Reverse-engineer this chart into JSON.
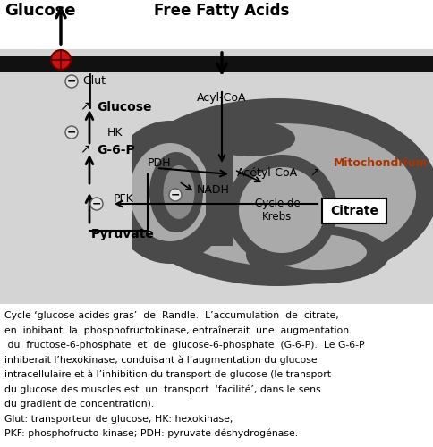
{
  "bg_diagram": "#d4d4d4",
  "bg_white": "#ffffff",
  "mito_dark": "#4a4a4a",
  "mito_mid": "#888888",
  "mito_light": "#b8b8b8",
  "membrane_color": "#111111",
  "caption_lines": [
    "Cycle ‘glucose-acides gras’  de  Randle.  L’accumulation  de  citrate,",
    "en  inhibant  la  phosphofructokinase, entraînerait  une  augmentation",
    " du  fructose-6-phosphate  et  de  glucose-6-phosphate  (G-6-P).  Le G-6-P",
    "inhiberait l’hexokinase, conduisant à l’augmentation du glucose",
    "intracellulaire et à l’inhibition du transport de glucose (le transport",
    "du glucose des muscles est  un  transport  ‘facilité’, dans le sens",
    "du gradient de concentration).",
    "Glut: transporteur de glucose; HK: hexokinase;",
    "PKF: phosphofructo-kinase; PDH: pyruvate déshydrogénase."
  ]
}
